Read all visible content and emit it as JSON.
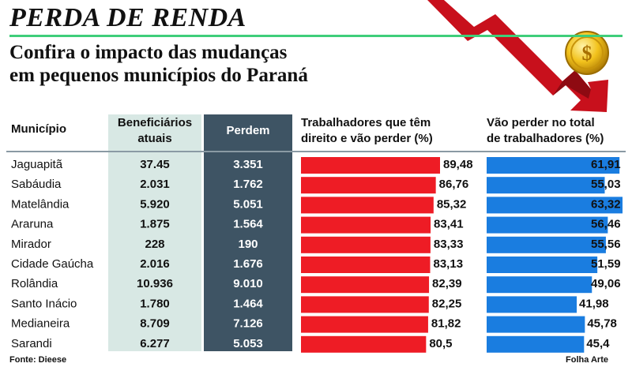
{
  "title": "PERDA DE RENDA",
  "subtitle": [
    "Confira o impacto das mudanças",
    "em pequenos municípios do Paraná"
  ],
  "source": "Fonte: Dieese",
  "credit": "Folha Arte",
  "colors": {
    "accent_rule": "#3fce7a",
    "red_bar": "#ee1c25",
    "blue_bar": "#1a7de0",
    "benef_column": "#d8e8e4",
    "perdem_column": "#3e5464",
    "arrow": "#c8101c",
    "coin": "#e8b40c"
  },
  "icons": [
    "falling-arrow-icon",
    "dollar-coin-icon"
  ],
  "chart_data": {
    "type": "table",
    "columns": [
      "Município",
      "Beneficiários atuais",
      "Perdem",
      "Trabalhadores que têm direito e vão perder (%)",
      "Vão perder no total de trabalhadores (%)"
    ],
    "header_lines": {
      "municipio": [
        "Município"
      ],
      "benef": [
        "Beneficiários",
        "atuais"
      ],
      "perdem": [
        "Perdem"
      ],
      "trab": [
        "Trabalhadores que têm",
        "direito e vão perder (%)"
      ],
      "vao": [
        "Vão perder no total",
        "de trabalhadores (%)"
      ]
    },
    "rows": [
      {
        "municipio": "Jaguapitã",
        "beneficiarios": "37.45",
        "perdem": "3.351",
        "trab": 89.48,
        "trab_label": "89,48",
        "vao": 61.91,
        "vao_label": "61,91"
      },
      {
        "municipio": "Sabáudia",
        "beneficiarios": "2.031",
        "perdem": "1.762",
        "trab": 86.76,
        "trab_label": "86,76",
        "vao": 55.03,
        "vao_label": "55,03"
      },
      {
        "municipio": "Matelândia",
        "beneficiarios": "5.920",
        "perdem": "5.051",
        "trab": 85.32,
        "trab_label": "85,32",
        "vao": 63.32,
        "vao_label": "63,32"
      },
      {
        "municipio": "Araruna",
        "beneficiarios": "1.875",
        "perdem": "1.564",
        "trab": 83.41,
        "trab_label": "83,41",
        "vao": 56.46,
        "vao_label": "56,46"
      },
      {
        "municipio": "Mirador",
        "beneficiarios": "228",
        "perdem": "190",
        "trab": 83.33,
        "trab_label": "83,33",
        "vao": 55.56,
        "vao_label": "55,56"
      },
      {
        "municipio": "Cidade Gaúcha",
        "beneficiarios": "2.016",
        "perdem": "1.676",
        "trab": 83.13,
        "trab_label": "83,13",
        "vao": 51.59,
        "vao_label": "51,59"
      },
      {
        "municipio": "Rolândia",
        "beneficiarios": "10.936",
        "perdem": "9.010",
        "trab": 82.39,
        "trab_label": "82,39",
        "vao": 49.06,
        "vao_label": "49,06"
      },
      {
        "municipio": "Santo Inácio",
        "beneficiarios": "1.780",
        "perdem": "1.464",
        "trab": 82.25,
        "trab_label": "82,25",
        "vao": 41.98,
        "vao_label": "41,98"
      },
      {
        "municipio": "Medianeira",
        "beneficiarios": "8.709",
        "perdem": "7.126",
        "trab": 81.82,
        "trab_label": "81,82",
        "vao": 45.78,
        "vao_label": "45,78"
      },
      {
        "municipio": "Sarandi",
        "beneficiarios": "6.277",
        "perdem": "5.053",
        "trab": 80.5,
        "trab_label": "80,5",
        "vao": 45.4,
        "vao_label": "45,4"
      }
    ]
  }
}
